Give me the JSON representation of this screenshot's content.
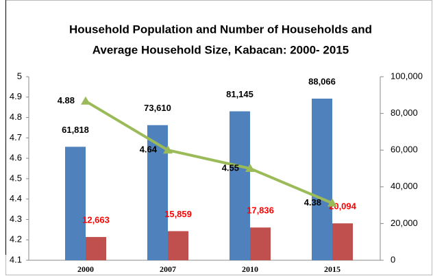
{
  "chart_data": {
    "type": "bar",
    "title": [
      "Household Population and Number of Households and",
      "Average Household Size, Kabacan: 2000- 2015"
    ],
    "categories": [
      "2000",
      "2007",
      "2010",
      "2015"
    ],
    "series": [
      {
        "type": "bar",
        "axis": "y2",
        "color": "#4f81bd",
        "label_color": "#000000",
        "values": [
          61818,
          73610,
          81145,
          88066
        ],
        "value_labels": [
          "61,818",
          "73,610",
          "81,145",
          "88,066"
        ]
      },
      {
        "type": "bar",
        "axis": "y2",
        "color": "#c0504d",
        "label_color": "#ff0000",
        "values": [
          12663,
          15859,
          17836,
          20094
        ],
        "value_labels": [
          "12,663",
          "15,859",
          "17,836",
          "20,094"
        ]
      },
      {
        "type": "line",
        "axis": "y",
        "color": "#9bbb59",
        "label_color": "#000000",
        "values": [
          4.88,
          4.64,
          4.55,
          4.38
        ]
      }
    ],
    "ylim": [
      4.1,
      5
    ],
    "yticks": [
      4.1,
      4.2,
      4.3,
      4.4,
      4.5,
      4.6,
      4.7,
      4.8,
      4.9,
      5
    ],
    "y2lim": [
      0,
      100000
    ],
    "y2ticks": [
      0,
      {
        "value": 20000,
        "label": "20,000"
      },
      {
        "value": 40000,
        "label": "40,000"
      },
      {
        "value": 60000,
        "label": "60,000"
      },
      {
        "value": 80000,
        "label": "80,000"
      },
      {
        "value": 100000,
        "label": "100,000"
      }
    ],
    "grid": false
  }
}
